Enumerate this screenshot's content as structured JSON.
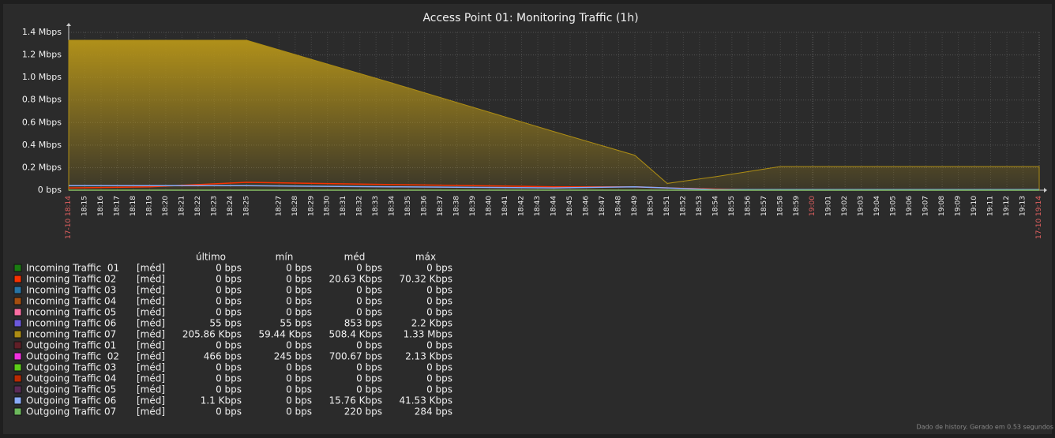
{
  "chart_data": {
    "type": "area",
    "title": "Access Point 01: Monitoring Traffic (1h)",
    "x": [
      0,
      5,
      11,
      20,
      30,
      35,
      37,
      40,
      44,
      50,
      60
    ],
    "xlim": [
      0,
      60
    ],
    "xticks": [
      {
        "value": 0,
        "label": "17-10 18:14"
      },
      {
        "value": 1,
        "label": "18:15"
      },
      {
        "value": 2,
        "label": "18:16"
      },
      {
        "value": 3,
        "label": "18:17"
      },
      {
        "value": 4,
        "label": "18:18"
      },
      {
        "value": 5,
        "label": "18:19"
      },
      {
        "value": 6,
        "label": "18:20"
      },
      {
        "value": 7,
        "label": "18:21"
      },
      {
        "value": 8,
        "label": "18:22"
      },
      {
        "value": 9,
        "label": "18:23"
      },
      {
        "value": 10,
        "label": "18:24"
      },
      {
        "value": 11,
        "label": "18:25"
      },
      {
        "value": 13,
        "label": "18:27"
      },
      {
        "value": 14,
        "label": "18:28"
      },
      {
        "value": 15,
        "label": "18:29"
      },
      {
        "value": 16,
        "label": "18:30"
      },
      {
        "value": 17,
        "label": "18:31"
      },
      {
        "value": 18,
        "label": "18:32"
      },
      {
        "value": 19,
        "label": "18:33"
      },
      {
        "value": 20,
        "label": "18:34"
      },
      {
        "value": 21,
        "label": "18:35"
      },
      {
        "value": 22,
        "label": "18:36"
      },
      {
        "value": 23,
        "label": "18:37"
      },
      {
        "value": 24,
        "label": "18:38"
      },
      {
        "value": 25,
        "label": "18:39"
      },
      {
        "value": 26,
        "label": "18:40"
      },
      {
        "value": 27,
        "label": "18:41"
      },
      {
        "value": 28,
        "label": "18:42"
      },
      {
        "value": 29,
        "label": "18:43"
      },
      {
        "value": 30,
        "label": "18:44"
      },
      {
        "value": 31,
        "label": "18:45"
      },
      {
        "value": 32,
        "label": "18:46"
      },
      {
        "value": 33,
        "label": "18:47"
      },
      {
        "value": 34,
        "label": "18:48"
      },
      {
        "value": 35,
        "label": "18:49"
      },
      {
        "value": 36,
        "label": "18:50"
      },
      {
        "value": 37,
        "label": "18:51"
      },
      {
        "value": 38,
        "label": "18:52"
      },
      {
        "value": 39,
        "label": "18:53"
      },
      {
        "value": 40,
        "label": "18:54"
      },
      {
        "value": 41,
        "label": "18:55"
      },
      {
        "value": 42,
        "label": "18:56"
      },
      {
        "value": 43,
        "label": "18:57"
      },
      {
        "value": 44,
        "label": "18:58"
      },
      {
        "value": 45,
        "label": "18:59"
      },
      {
        "value": 46,
        "label": "19:00"
      },
      {
        "value": 47,
        "label": "19:01"
      },
      {
        "value": 48,
        "label": "19:02"
      },
      {
        "value": 49,
        "label": "19:03"
      },
      {
        "value": 50,
        "label": "19:04"
      },
      {
        "value": 51,
        "label": "19:05"
      },
      {
        "value": 52,
        "label": "19:06"
      },
      {
        "value": 53,
        "label": "19:07"
      },
      {
        "value": 54,
        "label": "19:08"
      },
      {
        "value": 55,
        "label": "19:09"
      },
      {
        "value": 56,
        "label": "19:10"
      },
      {
        "value": 57,
        "label": "19:11"
      },
      {
        "value": 58,
        "label": "19:12"
      },
      {
        "value": 59,
        "label": "19:13"
      },
      {
        "value": 60,
        "label": "17-10 19:14"
      }
    ],
    "ylim": [
      0,
      1.4
    ],
    "yticks": [
      {
        "value": 0,
        "label": "0 bps"
      },
      {
        "value": 0.2,
        "label": "0.2 Mbps"
      },
      {
        "value": 0.4,
        "label": "0.4 Mbps"
      },
      {
        "value": 0.6,
        "label": "0.6 Mbps"
      },
      {
        "value": 0.8,
        "label": "0.8 Mbps"
      },
      {
        "value": 1.0,
        "label": "1.0 Mbps"
      },
      {
        "value": 1.2,
        "label": "1.2 Mbps"
      },
      {
        "value": 1.4,
        "label": "1.4 Mbps"
      }
    ],
    "grid": true,
    "legend_columns": [
      "último",
      "mín",
      "méd",
      "máx"
    ],
    "series": [
      {
        "name": "Incoming Traffic  01",
        "color": "#1a7c11",
        "style": "line",
        "values": [
          0,
          0,
          0,
          0,
          0,
          0,
          0,
          0,
          0,
          0,
          0
        ],
        "func": "[méd]",
        "stats": [
          "0 bps",
          "0 bps",
          "0 bps",
          "0 bps"
        ]
      },
      {
        "name": "Incoming Traffic 02",
        "color": "#f63100",
        "style": "line",
        "values": [
          0.02,
          0.03,
          0.07,
          0.05,
          0.03,
          0.03,
          0.02,
          0.01,
          0,
          0,
          0
        ],
        "func": "[méd]",
        "stats": [
          "0 bps",
          "0 bps",
          "20.63 Kbps",
          "70.32 Kbps"
        ]
      },
      {
        "name": "Incoming Traffic 03",
        "color": "#2774a4",
        "style": "line",
        "values": [
          0,
          0,
          0,
          0,
          0,
          0,
          0,
          0,
          0,
          0,
          0
        ],
        "func": "[méd]",
        "stats": [
          "0 bps",
          "0 bps",
          "0 bps",
          "0 bps"
        ]
      },
      {
        "name": "Incoming Traffic 04",
        "color": "#a54f10",
        "style": "line",
        "values": [
          0,
          0,
          0,
          0,
          0,
          0,
          0,
          0,
          0,
          0,
          0
        ],
        "func": "[méd]",
        "stats": [
          "0 bps",
          "0 bps",
          "0 bps",
          "0 bps"
        ]
      },
      {
        "name": "Incoming Traffic 05",
        "color": "#fc6ea3",
        "style": "line",
        "values": [
          0,
          0,
          0,
          0,
          0,
          0,
          0,
          0,
          0,
          0,
          0
        ],
        "func": "[méd]",
        "stats": [
          "0 bps",
          "0 bps",
          "0 bps",
          "0 bps"
        ]
      },
      {
        "name": "Incoming Traffic 06",
        "color": "#6c59dc",
        "style": "line",
        "values": [
          0,
          0,
          0,
          0,
          0,
          0,
          0,
          0,
          0,
          0,
          0
        ],
        "func": "[méd]",
        "stats": [
          "55 bps",
          "55 bps",
          "853 bps",
          "2.2 Kbps"
        ]
      },
      {
        "name": "Incoming Traffic 07",
        "color": "#ac8c14",
        "style": "area",
        "values": [
          1.33,
          1.33,
          1.33,
          0.95,
          0.52,
          0.31,
          0.06,
          0.12,
          0.21,
          0.21,
          0.21
        ],
        "func": "[méd]",
        "stats": [
          "205.86 Kbps",
          "59.44 Kbps",
          "508.4 Kbps",
          "1.33 Mbps"
        ]
      },
      {
        "name": "Outgoing Traffic 01",
        "color": "#611f27",
        "style": "line",
        "values": [
          0,
          0,
          0,
          0,
          0,
          0,
          0,
          0,
          0,
          0,
          0
        ],
        "func": "[méd]",
        "stats": [
          "0 bps",
          "0 bps",
          "0 bps",
          "0 bps"
        ]
      },
      {
        "name": "Outgoing Traffic  02",
        "color": "#f230e0",
        "style": "line",
        "values": [
          0,
          0,
          0,
          0,
          0,
          0,
          0,
          0,
          0,
          0,
          0
        ],
        "func": "[méd]",
        "stats": [
          "466 bps",
          "245 bps",
          "700.67 bps",
          "2.13 Kbps"
        ]
      },
      {
        "name": "Outgoing Traffic 03",
        "color": "#5ccd18",
        "style": "line",
        "values": [
          0,
          0,
          0,
          0,
          0,
          0,
          0,
          0,
          0,
          0,
          0
        ],
        "func": "[méd]",
        "stats": [
          "0 bps",
          "0 bps",
          "0 bps",
          "0 bps"
        ]
      },
      {
        "name": "Outgoing Traffic 04",
        "color": "#bb2a02",
        "style": "line",
        "values": [
          0,
          0,
          0,
          0,
          0,
          0,
          0,
          0,
          0,
          0,
          0
        ],
        "func": "[méd]",
        "stats": [
          "0 bps",
          "0 bps",
          "0 bps",
          "0 bps"
        ]
      },
      {
        "name": "Outgoing Traffic 05",
        "color": "#5a2b57",
        "style": "line",
        "values": [
          0,
          0,
          0,
          0,
          0,
          0,
          0,
          0,
          0,
          0,
          0
        ],
        "func": "[méd]",
        "stats": [
          "0 bps",
          "0 bps",
          "0 bps",
          "0 bps"
        ]
      },
      {
        "name": "Outgoing Traffic 06",
        "color": "#89abf8",
        "style": "line",
        "values": [
          0.04,
          0.04,
          0.04,
          0.03,
          0.02,
          0.03,
          0.02,
          0.005,
          0.005,
          0.005,
          0.005
        ],
        "func": "[méd]",
        "stats": [
          "1.1 Kbps",
          "0 bps",
          "15.76 Kbps",
          "41.53 Kbps"
        ]
      },
      {
        "name": "Outgoing Traffic 07",
        "color": "#6cb85c",
        "style": "line",
        "values": [
          0,
          0,
          0,
          0,
          0,
          0,
          0,
          0,
          0,
          0,
          0
        ],
        "func": "[méd]",
        "stats": [
          "0 bps",
          "0 bps",
          "220 bps",
          "284 bps"
        ]
      }
    ],
    "footer": "Dado de history. Gerado em 0.53 segundos"
  }
}
